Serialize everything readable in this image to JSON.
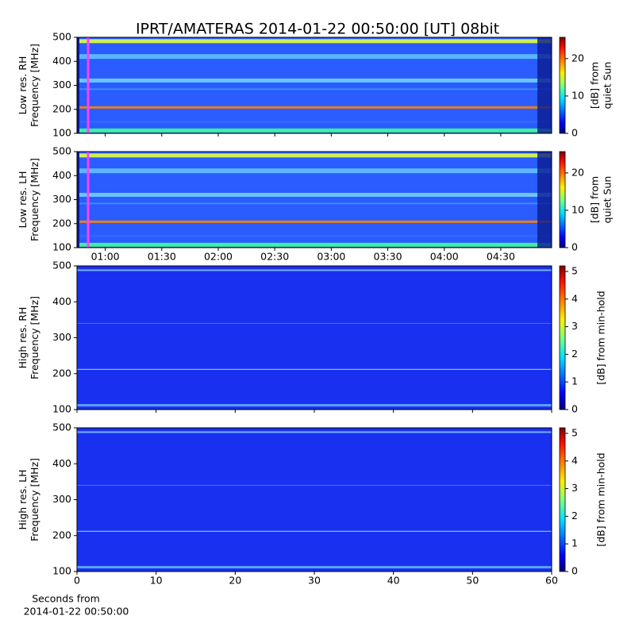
{
  "chart_data": [
    {
      "type": "heatmap",
      "title": "IPRT/AMATERAS 2014-01-22 00:50:00 [UT]   08bit",
      "ylabel": [
        "Low res. RH",
        "Frequency [MHz]"
      ],
      "ylim": [
        100,
        500
      ],
      "yticks": [
        100,
        200,
        300,
        400,
        500
      ],
      "xlim": [
        45,
        297
      ],
      "xticks": [
        60,
        90,
        120,
        150,
        180,
        210,
        240,
        270
      ],
      "xtick_labels": false,
      "colorbar_label": [
        "[dB] from",
        "quiet Sun"
      ],
      "clim": [
        0,
        25.7
      ],
      "cticks": [
        0,
        10,
        20
      ],
      "colormap": "jet"
    },
    {
      "type": "heatmap",
      "ylabel": [
        "Low res. LH",
        "Frequency [MHz]"
      ],
      "ylim": [
        100,
        500
      ],
      "yticks": [
        100,
        200,
        300,
        400,
        500
      ],
      "xlim": [
        45,
        297
      ],
      "xticks": [
        {
          "value": 60,
          "label": "01:00"
        },
        {
          "value": 90,
          "label": "01:30"
        },
        {
          "value": 120,
          "label": "02:00"
        },
        {
          "value": 150,
          "label": "02:30"
        },
        {
          "value": 180,
          "label": "03:00"
        },
        {
          "value": 210,
          "label": "03:30"
        },
        {
          "value": 240,
          "label": "04:00"
        },
        {
          "value": 270,
          "label": "04:30"
        }
      ],
      "colorbar_label": [
        "[dB] from",
        "quiet Sun"
      ],
      "clim": [
        0,
        25.7
      ],
      "cticks": [
        0,
        10,
        20
      ],
      "colormap": "jet"
    },
    {
      "type": "heatmap",
      "ylabel": [
        "High res. RH",
        "Frequency [MHz]"
      ],
      "ylim": [
        100,
        500
      ],
      "yticks": [
        100,
        200,
        300,
        400,
        500
      ],
      "xlim": [
        0,
        60
      ],
      "xticks": [
        0,
        10,
        20,
        30,
        40,
        50,
        60
      ],
      "xtick_labels": false,
      "colorbar_label": [
        "[dB] from min-hold"
      ],
      "clim": [
        0,
        5.2
      ],
      "cticks": [
        0,
        1,
        2,
        3,
        4,
        5
      ],
      "colormap": "jet"
    },
    {
      "type": "heatmap",
      "ylabel": [
        "High res. LH",
        "Frequency [MHz]"
      ],
      "ylim": [
        100,
        500
      ],
      "yticks": [
        100,
        200,
        300,
        400,
        500
      ],
      "xlim": [
        0,
        60
      ],
      "xticks": [
        0,
        10,
        20,
        30,
        40,
        50,
        60
      ],
      "xlabel": [
        "Seconds from",
        "2014-01-22 00:50:00"
      ],
      "colorbar_label": [
        "[dB] from min-hold"
      ],
      "clim": [
        0,
        5.2
      ],
      "cticks": [
        0,
        1,
        2,
        3,
        4,
        5
      ],
      "colormap": "jet"
    }
  ]
}
